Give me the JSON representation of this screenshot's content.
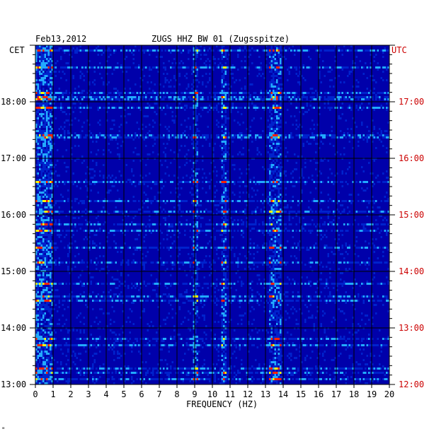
{
  "chart_data": {
    "type": "heatmap",
    "date": "Feb13,2012",
    "title": "ZUGS HHZ BW 01 (Zugsspitze)",
    "left_axis_label": "CET",
    "right_axis_label": "UTC",
    "xlabel": "FREQUENCY (HZ)",
    "xlim": [
      0,
      20
    ],
    "x_ticks": [
      "0",
      "1",
      "2",
      "3",
      "4",
      "5",
      "6",
      "7",
      "8",
      "9",
      "10",
      "11",
      "12",
      "13",
      "14",
      "15",
      "16",
      "17",
      "18",
      "19",
      "20"
    ],
    "cet_ticks": [
      "18:00",
      "17:00",
      "16:00",
      "15:00",
      "14:00",
      "13:00"
    ],
    "utc_ticks": [
      "17:00",
      "16:00",
      "15:00",
      "14:00",
      "13:00",
      "12:00"
    ],
    "time_range_cet": [
      "13:00",
      "19:00"
    ],
    "grid": true,
    "colors": {
      "background": "#0000aa",
      "low": "#0022cc",
      "mid": "#22aaff",
      "high": "#ffff00",
      "peak": "#ff2200",
      "utc_text": "#cc0000"
    }
  },
  "footer_mark": "\""
}
